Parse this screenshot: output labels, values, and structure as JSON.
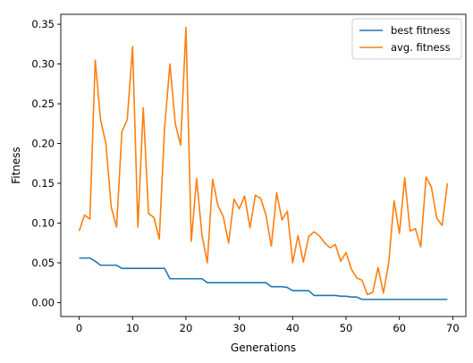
{
  "chart_data": {
    "type": "line",
    "title": "",
    "xlabel": "Generations",
    "ylabel": "Fitness",
    "xlim": [
      -3.45,
      72.45
    ],
    "ylim": [
      -0.0175,
      0.3625
    ],
    "xticks": [
      0,
      10,
      20,
      30,
      40,
      50,
      60,
      70
    ],
    "yticks": [
      0.0,
      0.05,
      0.1,
      0.15,
      0.2,
      0.25,
      0.3,
      0.35
    ],
    "xtick_labels": [
      "0",
      "10",
      "20",
      "30",
      "40",
      "50",
      "60",
      "70"
    ],
    "ytick_labels": [
      "0.00",
      "0.05",
      "0.10",
      "0.15",
      "0.20",
      "0.25",
      "0.30",
      "0.35"
    ],
    "grid": false,
    "legend_position": "top-right",
    "series": [
      {
        "name": "best fitness",
        "color": "#1f77b4",
        "x": [
          0,
          1,
          2,
          3,
          4,
          5,
          6,
          7,
          8,
          9,
          10,
          11,
          12,
          13,
          14,
          15,
          16,
          17,
          18,
          19,
          20,
          21,
          22,
          23,
          24,
          25,
          26,
          27,
          28,
          29,
          30,
          31,
          32,
          33,
          34,
          35,
          36,
          37,
          38,
          39,
          40,
          41,
          42,
          43,
          44,
          45,
          46,
          47,
          48,
          49,
          50,
          51,
          52,
          53,
          54,
          55,
          56,
          57,
          58,
          59,
          60,
          61,
          62,
          63,
          64,
          65,
          66,
          67,
          68,
          69
        ],
        "values": [
          0.056,
          0.056,
          0.056,
          0.052,
          0.047,
          0.047,
          0.047,
          0.047,
          0.043,
          0.043,
          0.043,
          0.043,
          0.043,
          0.043,
          0.043,
          0.043,
          0.043,
          0.03,
          0.03,
          0.03,
          0.03,
          0.03,
          0.03,
          0.03,
          0.025,
          0.025,
          0.025,
          0.025,
          0.025,
          0.025,
          0.025,
          0.025,
          0.025,
          0.025,
          0.025,
          0.025,
          0.02,
          0.02,
          0.02,
          0.019,
          0.015,
          0.015,
          0.015,
          0.015,
          0.009,
          0.009,
          0.009,
          0.009,
          0.009,
          0.008,
          0.008,
          0.007,
          0.007,
          0.004,
          0.004,
          0.004,
          0.004,
          0.004,
          0.004,
          0.004,
          0.004,
          0.004,
          0.004,
          0.004,
          0.004,
          0.004,
          0.004,
          0.004,
          0.004,
          0.004
        ]
      },
      {
        "name": "avg. fitness",
        "color": "#ff7f0e",
        "x": [
          0,
          1,
          2,
          3,
          4,
          5,
          6,
          7,
          8,
          9,
          10,
          11,
          12,
          13,
          14,
          15,
          16,
          17,
          18,
          19,
          20,
          21,
          22,
          23,
          24,
          25,
          26,
          27,
          28,
          29,
          30,
          31,
          32,
          33,
          34,
          35,
          36,
          37,
          38,
          39,
          40,
          41,
          42,
          43,
          44,
          45,
          46,
          47,
          48,
          49,
          50,
          51,
          52,
          53,
          54,
          55,
          56,
          57,
          58,
          59,
          60,
          61,
          62,
          63,
          64,
          65,
          66,
          67,
          68,
          69
        ],
        "values": [
          0.09,
          0.11,
          0.105,
          0.305,
          0.23,
          0.2,
          0.12,
          0.095,
          0.215,
          0.23,
          0.322,
          0.095,
          0.245,
          0.112,
          0.107,
          0.08,
          0.22,
          0.3,
          0.225,
          0.198,
          0.346,
          0.077,
          0.156,
          0.085,
          0.05,
          0.155,
          0.122,
          0.108,
          0.075,
          0.13,
          0.118,
          0.134,
          0.094,
          0.135,
          0.131,
          0.11,
          0.071,
          0.138,
          0.104,
          0.115,
          0.05,
          0.084,
          0.051,
          0.083,
          0.089,
          0.084,
          0.075,
          0.069,
          0.073,
          0.052,
          0.063,
          0.042,
          0.031,
          0.028,
          0.01,
          0.013,
          0.044,
          0.012,
          0.05,
          0.128,
          0.087,
          0.157,
          0.09,
          0.093,
          0.07,
          0.158,
          0.145,
          0.106,
          0.097,
          0.15
        ]
      }
    ]
  }
}
